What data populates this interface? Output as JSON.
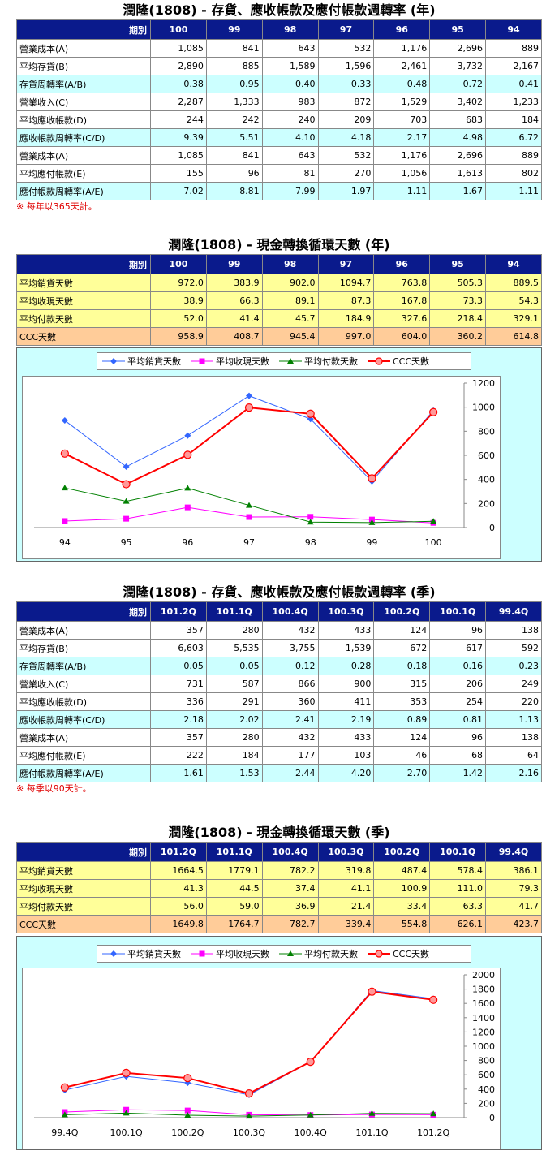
{
  "annual_turnover": {
    "title": "潤隆(1808) - 存貨、應收帳款及應付帳款週轉率 (年)",
    "header_label": "期別",
    "periods": [
      "100",
      "99",
      "98",
      "97",
      "96",
      "95",
      "94"
    ],
    "rows": [
      {
        "label": "營業成本(A)",
        "values": [
          "1,085",
          "841",
          "643",
          "532",
          "1,176",
          "2,696",
          "889"
        ],
        "style": "w"
      },
      {
        "label": "平均存貨(B)",
        "values": [
          "2,890",
          "885",
          "1,589",
          "1,596",
          "2,461",
          "3,732",
          "2,167"
        ],
        "style": "w"
      },
      {
        "label": "存貨周轉率(A/B)",
        "values": [
          "0.38",
          "0.95",
          "0.40",
          "0.33",
          "0.48",
          "0.72",
          "0.41"
        ],
        "style": "c"
      },
      {
        "label": "營業收入(C)",
        "values": [
          "2,287",
          "1,333",
          "983",
          "872",
          "1,529",
          "3,402",
          "1,233"
        ],
        "style": "w"
      },
      {
        "label": "平均應收帳款(D)",
        "values": [
          "244",
          "242",
          "240",
          "209",
          "703",
          "683",
          "184"
        ],
        "style": "w"
      },
      {
        "label": "應收帳款周轉率(C/D)",
        "values": [
          "9.39",
          "5.51",
          "4.10",
          "4.18",
          "2.17",
          "4.98",
          "6.72"
        ],
        "style": "c"
      },
      {
        "label": "營業成本(A)",
        "values": [
          "1,085",
          "841",
          "643",
          "532",
          "1,176",
          "2,696",
          "889"
        ],
        "style": "w"
      },
      {
        "label": "平均應付帳款(E)",
        "values": [
          "155",
          "96",
          "81",
          "270",
          "1,056",
          "1,613",
          "802"
        ],
        "style": "w"
      },
      {
        "label": "應付帳款周轉率(A/E)",
        "values": [
          "7.02",
          "8.81",
          "7.99",
          "1.97",
          "1.11",
          "1.67",
          "1.11"
        ],
        "style": "c"
      }
    ],
    "note": "※ 每年以365天計。"
  },
  "annual_ccc": {
    "title": "潤隆(1808) - 現金轉換循環天數 (年)",
    "header_label": "期別",
    "periods": [
      "100",
      "99",
      "98",
      "97",
      "96",
      "95",
      "94"
    ],
    "rows": [
      {
        "label": "平均銷貨天數",
        "values": [
          "972.0",
          "383.9",
          "902.0",
          "1094.7",
          "763.8",
          "505.3",
          "889.5"
        ],
        "style": "y"
      },
      {
        "label": "平均收現天數",
        "values": [
          "38.9",
          "66.3",
          "89.1",
          "87.3",
          "167.8",
          "73.3",
          "54.3"
        ],
        "style": "y"
      },
      {
        "label": "平均付款天數",
        "values": [
          "52.0",
          "41.4",
          "45.7",
          "184.9",
          "327.6",
          "218.4",
          "329.1"
        ],
        "style": "y"
      },
      {
        "label": "CCC天數",
        "values": [
          "958.9",
          "408.7",
          "945.4",
          "997.0",
          "604.0",
          "360.2",
          "614.8"
        ],
        "style": "o"
      }
    ]
  },
  "quarterly_turnover": {
    "title": "潤隆(1808) - 存貨、應收帳款及應付帳款週轉率 (季)",
    "header_label": "期別",
    "periods": [
      "101.2Q",
      "101.1Q",
      "100.4Q",
      "100.3Q",
      "100.2Q",
      "100.1Q",
      "99.4Q"
    ],
    "rows": [
      {
        "label": "營業成本(A)",
        "values": [
          "357",
          "280",
          "432",
          "433",
          "124",
          "96",
          "138"
        ],
        "style": "w"
      },
      {
        "label": "平均存貨(B)",
        "values": [
          "6,603",
          "5,535",
          "3,755",
          "1,539",
          "672",
          "617",
          "592"
        ],
        "style": "w"
      },
      {
        "label": "存貨周轉率(A/B)",
        "values": [
          "0.05",
          "0.05",
          "0.12",
          "0.28",
          "0.18",
          "0.16",
          "0.23"
        ],
        "style": "c"
      },
      {
        "label": "營業收入(C)",
        "values": [
          "731",
          "587",
          "866",
          "900",
          "315",
          "206",
          "249"
        ],
        "style": "w"
      },
      {
        "label": "平均應收帳款(D)",
        "values": [
          "336",
          "291",
          "360",
          "411",
          "353",
          "254",
          "220"
        ],
        "style": "w"
      },
      {
        "label": "應收帳款周轉率(C/D)",
        "values": [
          "2.18",
          "2.02",
          "2.41",
          "2.19",
          "0.89",
          "0.81",
          "1.13"
        ],
        "style": "c"
      },
      {
        "label": "營業成本(A)",
        "values": [
          "357",
          "280",
          "432",
          "433",
          "124",
          "96",
          "138"
        ],
        "style": "w"
      },
      {
        "label": "平均應付帳款(E)",
        "values": [
          "222",
          "184",
          "177",
          "103",
          "46",
          "68",
          "64"
        ],
        "style": "w"
      },
      {
        "label": "應付帳款周轉率(A/E)",
        "values": [
          "1.61",
          "1.53",
          "2.44",
          "4.20",
          "2.70",
          "1.42",
          "2.16"
        ],
        "style": "c"
      }
    ],
    "note": "※ 每季以90天計。"
  },
  "quarterly_ccc": {
    "title": "潤隆(1808) - 現金轉換循環天數 (季)",
    "header_label": "期別",
    "periods": [
      "101.2Q",
      "101.1Q",
      "100.4Q",
      "100.3Q",
      "100.2Q",
      "100.1Q",
      "99.4Q"
    ],
    "rows": [
      {
        "label": "平均銷貨天數",
        "values": [
          "1664.5",
          "1779.1",
          "782.2",
          "319.8",
          "487.4",
          "578.4",
          "386.1"
        ],
        "style": "y"
      },
      {
        "label": "平均收現天數",
        "values": [
          "41.3",
          "44.5",
          "37.4",
          "41.1",
          "100.9",
          "111.0",
          "79.3"
        ],
        "style": "y"
      },
      {
        "label": "平均付款天數",
        "values": [
          "56.0",
          "59.0",
          "36.9",
          "21.4",
          "33.4",
          "63.3",
          "41.7"
        ],
        "style": "y"
      },
      {
        "label": "CCC天數",
        "values": [
          "1649.8",
          "1764.7",
          "782.7",
          "339.4",
          "554.8",
          "626.1",
          "423.7"
        ],
        "style": "o"
      }
    ]
  },
  "chart_data": [
    {
      "type": "line",
      "categories": [
        "94",
        "95",
        "96",
        "97",
        "98",
        "99",
        "100"
      ],
      "ylim": [
        0,
        1200
      ],
      "yticks": [
        "0",
        "200",
        "400",
        "600",
        "800",
        "1000",
        "1200"
      ],
      "legend_position": "top",
      "series": [
        {
          "name": "平均銷貨天數",
          "values": [
            889.5,
            505.3,
            763.8,
            1094.7,
            902.0,
            383.9,
            972.0
          ],
          "color": "#3366ff",
          "marker": "diamond"
        },
        {
          "name": "平均收現天數",
          "values": [
            54.3,
            73.3,
            167.8,
            87.3,
            89.1,
            66.3,
            38.9
          ],
          "color": "#ff00ff",
          "marker": "square"
        },
        {
          "name": "平均付款天數",
          "values": [
            329.1,
            218.4,
            327.6,
            184.9,
            45.7,
            41.4,
            52.0
          ],
          "color": "#008000",
          "marker": "triangle"
        },
        {
          "name": "CCC天數",
          "values": [
            614.8,
            360.2,
            604.0,
            997.0,
            945.4,
            408.7,
            958.9
          ],
          "color": "#ff0000",
          "marker": "circle"
        }
      ]
    },
    {
      "type": "line",
      "categories": [
        "99.4Q",
        "100.1Q",
        "100.2Q",
        "100.3Q",
        "100.4Q",
        "101.1Q",
        "101.2Q"
      ],
      "ylim": [
        0,
        2000
      ],
      "yticks": [
        "0",
        "200",
        "400",
        "600",
        "800",
        "1000",
        "1200",
        "1400",
        "1600",
        "1800",
        "2000"
      ],
      "legend_position": "top",
      "series": [
        {
          "name": "平均銷貨天數",
          "values": [
            386.1,
            578.4,
            487.4,
            319.8,
            782.2,
            1779.1,
            1664.5
          ],
          "color": "#3366ff",
          "marker": "diamond"
        },
        {
          "name": "平均收現天數",
          "values": [
            79.3,
            111.0,
            100.9,
            41.1,
            37.4,
            44.5,
            41.3
          ],
          "color": "#ff00ff",
          "marker": "square"
        },
        {
          "name": "平均付款天數",
          "values": [
            41.7,
            63.3,
            33.4,
            21.4,
            36.9,
            59.0,
            56.0
          ],
          "color": "#008000",
          "marker": "triangle"
        },
        {
          "name": "CCC天數",
          "values": [
            423.7,
            626.1,
            554.8,
            339.4,
            782.7,
            1764.7,
            1649.8
          ],
          "color": "#ff0000",
          "marker": "circle"
        }
      ]
    }
  ]
}
